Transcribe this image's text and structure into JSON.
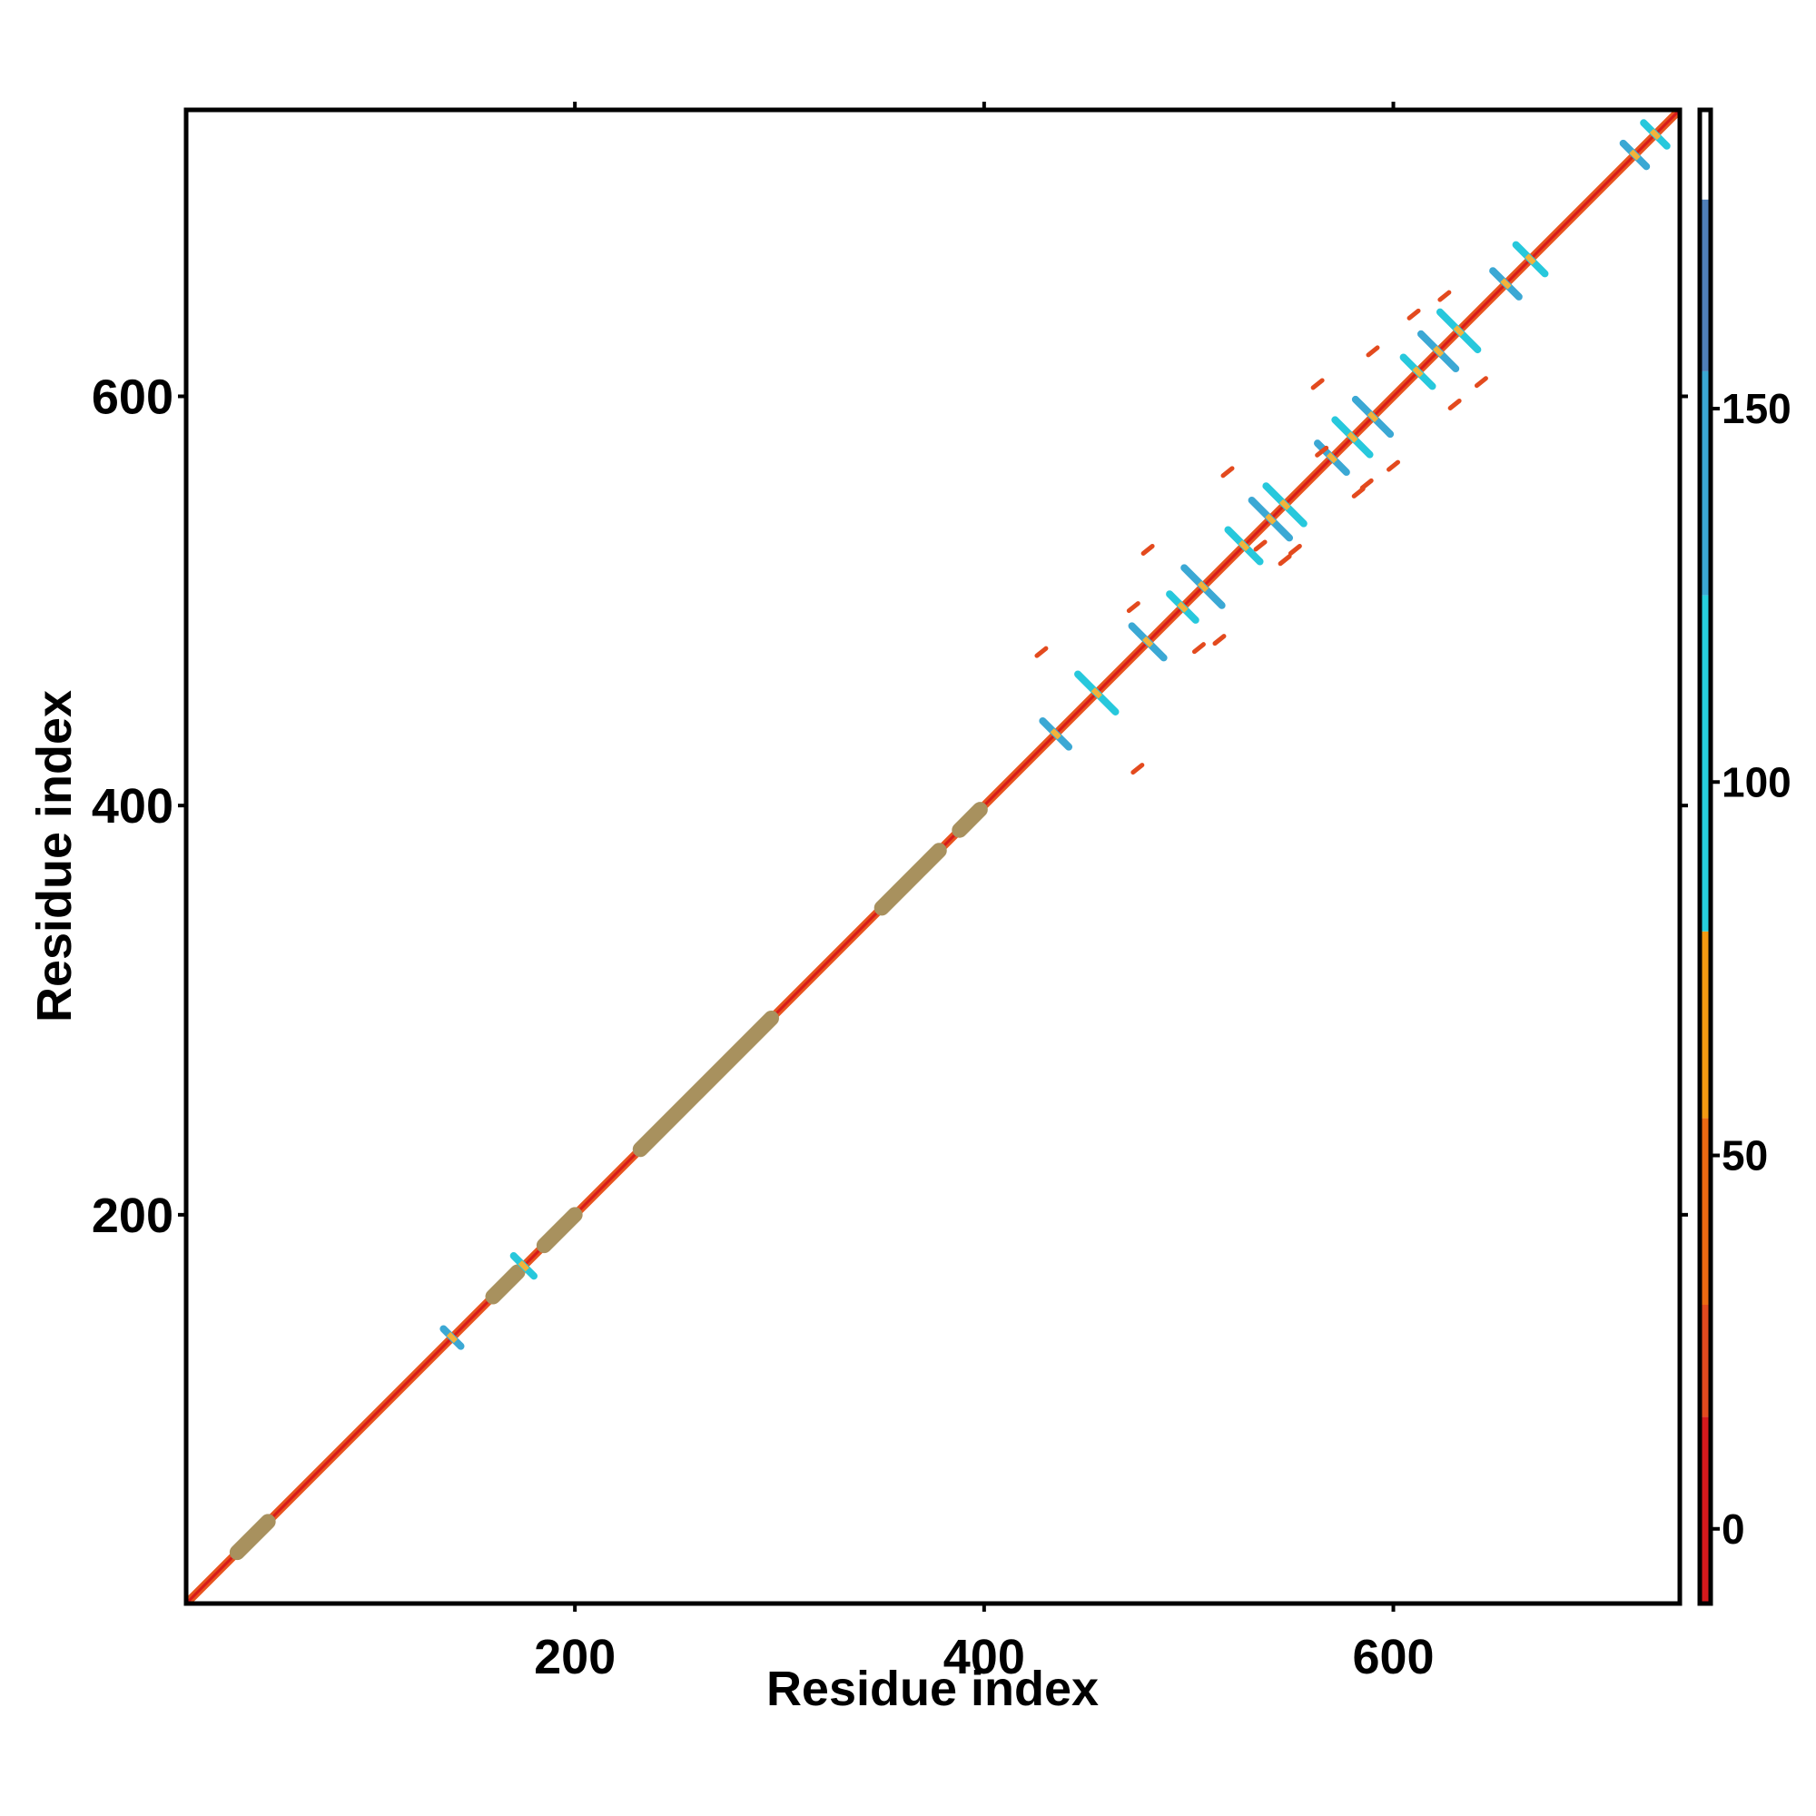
{
  "chart_data": {
    "type": "heatmap",
    "title": "",
    "xlabel": "Residue index",
    "ylabel": "Residue index",
    "xlim": [
      10,
      740
    ],
    "ylim": [
      10,
      740
    ],
    "x_ticks": [
      200,
      400,
      600
    ],
    "y_ticks": [
      200,
      400,
      600
    ],
    "x_tick_labels": [
      "200",
      "400",
      "600"
    ],
    "y_tick_labels": [
      "200",
      "400",
      "600"
    ],
    "grid": false,
    "legend": "colorbar-right",
    "colorbar": {
      "range": [
        -10,
        190
      ],
      "ticks": [
        0,
        50,
        100,
        150
      ],
      "tick_labels": [
        "0",
        "50",
        "100",
        "150"
      ],
      "bands": [
        {
          "from": -10,
          "to": 15,
          "color": "#d7191c"
        },
        {
          "from": 15,
          "to": 30,
          "color": "#e34a1e"
        },
        {
          "from": 30,
          "to": 55,
          "color": "#ec6a12"
        },
        {
          "from": 55,
          "to": 80,
          "color": "#f39a12"
        },
        {
          "from": 80,
          "to": 125,
          "color": "#27d1de"
        },
        {
          "from": 125,
          "to": 155,
          "color": "#3ba8d4"
        },
        {
          "from": 155,
          "to": 178,
          "color": "#4f7fb8"
        },
        {
          "from": 178,
          "to": 190,
          "color": "#ffffff"
        }
      ]
    },
    "colors": {
      "diagonal": "#e8541e",
      "diagonal_core": "#d7191c",
      "helix_block": "#a8915e",
      "cross_primary": "#3ba8d4",
      "cross_secondary": "#27c8dc",
      "spot": "#e34a1e"
    },
    "diagonal_thick_segments": [
      {
        "from": 35,
        "to": 50
      },
      {
        "from": 160,
        "to": 172
      },
      {
        "from": 185,
        "to": 200
      },
      {
        "from": 232,
        "to": 296
      },
      {
        "from": 350,
        "to": 378
      },
      {
        "from": 388,
        "to": 398
      }
    ],
    "cross_contacts": [
      {
        "center": 140,
        "half_length": 6
      },
      {
        "center": 175,
        "half_length": 7
      },
      {
        "center": 435,
        "half_length": 9
      },
      {
        "center": 455,
        "half_length": 13
      },
      {
        "center": 480,
        "half_length": 11
      },
      {
        "center": 497,
        "half_length": 9
      },
      {
        "center": 507,
        "half_length": 13
      },
      {
        "center": 527,
        "half_length": 11
      },
      {
        "center": 540,
        "half_length": 13
      },
      {
        "center": 547,
        "half_length": 13
      },
      {
        "center": 570,
        "half_length": 10
      },
      {
        "center": 580,
        "half_length": 12
      },
      {
        "center": 590,
        "half_length": 12
      },
      {
        "center": 612,
        "half_length": 10
      },
      {
        "center": 622,
        "half_length": 12
      },
      {
        "center": 632,
        "half_length": 13
      },
      {
        "center": 655,
        "half_length": 9
      },
      {
        "center": 667,
        "half_length": 10
      },
      {
        "center": 718,
        "half_length": 8
      },
      {
        "center": 728,
        "half_length": 8
      }
    ],
    "offdiagonal_spots": [
      {
        "x": 428,
        "y": 475
      },
      {
        "x": 475,
        "y": 418
      },
      {
        "x": 480,
        "y": 525
      },
      {
        "x": 473,
        "y": 497
      },
      {
        "x": 505,
        "y": 477
      },
      {
        "x": 515,
        "y": 481
      },
      {
        "x": 519,
        "y": 563
      },
      {
        "x": 535,
        "y": 527
      },
      {
        "x": 547,
        "y": 520
      },
      {
        "x": 552,
        "y": 525
      },
      {
        "x": 563,
        "y": 606
      },
      {
        "x": 565,
        "y": 573
      },
      {
        "x": 583,
        "y": 553
      },
      {
        "x": 590,
        "y": 622
      },
      {
        "x": 600,
        "y": 566
      },
      {
        "x": 610,
        "y": 640
      },
      {
        "x": 625,
        "y": 649
      },
      {
        "x": 630,
        "y": 596
      },
      {
        "x": 643,
        "y": 607
      },
      {
        "x": 587,
        "y": 557
      }
    ]
  }
}
